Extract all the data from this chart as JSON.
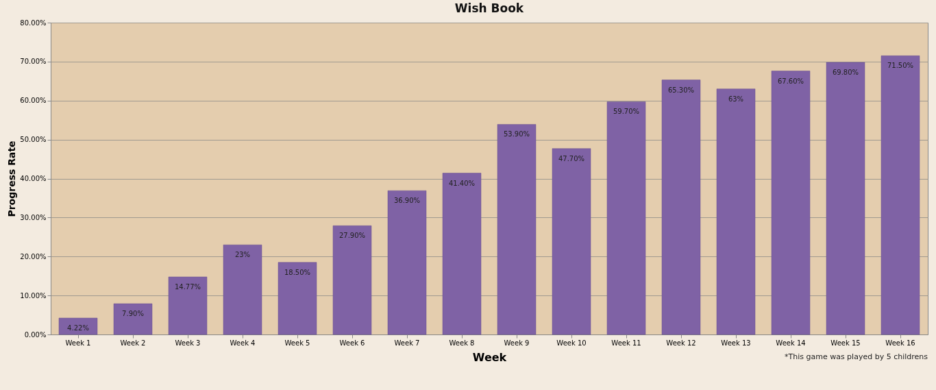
{
  "chart_data": {
    "type": "bar",
    "title": "Wish Book",
    "xlabel": "Week",
    "ylabel": "Progress Rate",
    "categories": [
      "Week 1",
      "Week 2",
      "Week 3",
      "Week 4",
      "Week 5",
      "Week 6",
      "Week 7",
      "Week 8",
      "Week 9",
      "Week 10",
      "Week 11",
      "Week 12",
      "Week 13",
      "Week 14",
      "Week 15",
      "Week 16"
    ],
    "values": [
      4.22,
      7.9,
      14.77,
      23,
      18.5,
      27.9,
      36.9,
      41.4,
      53.9,
      47.7,
      59.7,
      65.3,
      63,
      67.6,
      69.8,
      71.5
    ],
    "value_labels": [
      "4.22%",
      "7.90%",
      "14.77%",
      "23%",
      "18.50%",
      "27.90%",
      "36.90%",
      "41.40%",
      "53.90%",
      "47.70%",
      "59.70%",
      "65.30%",
      "63%",
      "67.60%",
      "69.80%",
      "71.50%"
    ],
    "color": "#7f62a5",
    "ylim": [
      0,
      80
    ],
    "yticks": [
      {
        "value": 0,
        "label": "0.00%"
      },
      {
        "value": 10,
        "label": "10.00%"
      },
      {
        "value": 20,
        "label": "20.00%"
      },
      {
        "value": 30,
        "label": "30.00%"
      },
      {
        "value": 40,
        "label": "40.00%"
      },
      {
        "value": 50,
        "label": "50.00%"
      },
      {
        "value": 60,
        "label": "60.00%"
      },
      {
        "value": 70,
        "label": "70.00%"
      },
      {
        "value": 80,
        "label": "80.00%"
      }
    ],
    "grid": "y",
    "annotations": [
      "*This game was played by 5 childrens"
    ]
  }
}
